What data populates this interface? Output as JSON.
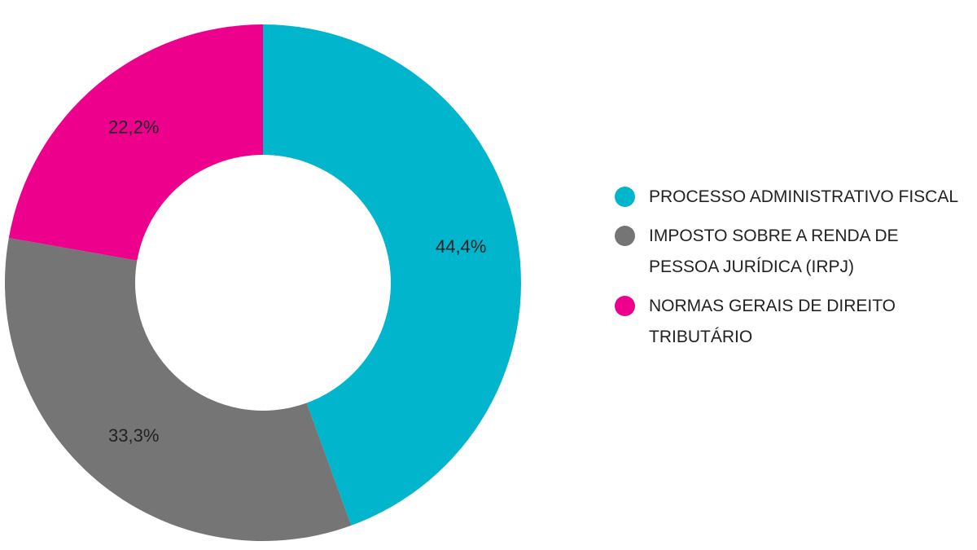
{
  "chart_data": {
    "type": "donut",
    "categories": [
      "PROCESSO ADMINISTRATIVO FISCAL",
      "IMPOSTO SOBRE A RENDA DE PESSOA JURÍDICA (IRPJ)",
      "NORMAS GERAIS DE DIREITO TRIBUTÁRIO"
    ],
    "values": [
      44.4,
      33.3,
      22.2
    ],
    "value_labels": [
      "44,4%",
      "33,3%",
      "22,2%"
    ],
    "colors": [
      "#00b5cc",
      "#757575",
      "#ec008c"
    ],
    "legend": "right"
  }
}
